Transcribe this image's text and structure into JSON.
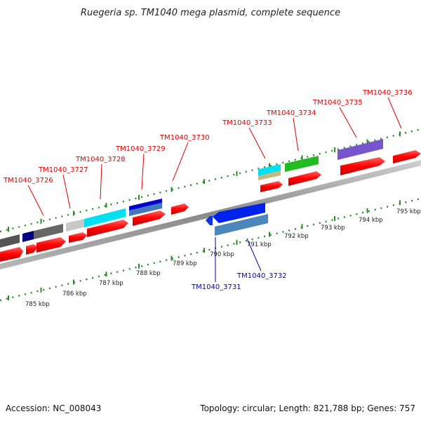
{
  "title": "Ruegeria sp. TM1040 mega plasmid, complete sequence",
  "footer": {
    "accession": "Accession: NC_008043",
    "summary": "Topology: circular; Length: 821,788 bp; Genes: 757"
  },
  "colors": {
    "forward_label": "#dd0000",
    "reverse_label": "#0000aa",
    "backbone": "#999999",
    "tick": "#228822",
    "cds_forward": "#ff0000"
  },
  "tick_labels": [
    "785 kbp",
    "786 kbp",
    "787 kbp",
    "788 kbp",
    "789 kbp",
    "790 kbp",
    "791 kbp",
    "792 kbp",
    "793 kbp",
    "794 kbp",
    "795 kbp"
  ],
  "gene_labels_forward": [
    "TM1040_3726",
    "TM1040_3727",
    "TM1040_3728",
    "TM1040_3729",
    "TM1040_3730",
    "TM1040_3733",
    "TM1040_3734",
    "TM1040_3735",
    "TM1040_3736"
  ],
  "gene_labels_reverse": [
    "TM1040_3731",
    "TM1040_3732"
  ]
}
